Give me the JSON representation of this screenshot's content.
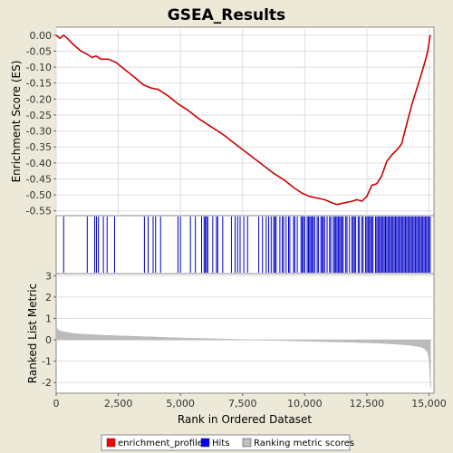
{
  "chart_data": {
    "type": "line",
    "title": "GSEA_Results",
    "xlabel": "Rank in Ordered Dataset",
    "xlim": [
      0,
      15200
    ],
    "xticks": [
      0,
      2500,
      5000,
      7500,
      10000,
      12500,
      15000
    ],
    "xtick_labels": [
      "0",
      "2,500",
      "5,000",
      "7,500",
      "10,000",
      "12,500",
      "15,000"
    ],
    "panels": {
      "enrichment": {
        "ylabel": "Enrichment Score (ES)",
        "ylim": [
          -0.565,
          0.025
        ],
        "yticks": [
          0.0,
          -0.05,
          -0.1,
          -0.15,
          -0.2,
          -0.25,
          -0.3,
          -0.35,
          -0.4,
          -0.45,
          -0.5,
          -0.55
        ],
        "ytick_labels": [
          "0.00",
          "-0.05",
          "-0.10",
          "-0.15",
          "-0.20",
          "-0.25",
          "-0.30",
          "-0.35",
          "-0.40",
          "-0.45",
          "-0.50",
          "-0.55"
        ],
        "series": {
          "name": "enrichment_profile",
          "color": "#cc0000",
          "x": [
            0,
            150,
            300,
            450,
            700,
            1000,
            1250,
            1450,
            1600,
            1800,
            2100,
            2400,
            2800,
            3200,
            3500,
            3800,
            4100,
            4500,
            4900,
            5300,
            5800,
            6200,
            6700,
            7200,
            7700,
            8200,
            8700,
            9200,
            9600,
            9900,
            10200,
            10500,
            10800,
            11100,
            11300,
            11600,
            11900,
            12100,
            12300,
            12500,
            12700,
            12900,
            13100,
            13300,
            13500,
            13700,
            13900,
            14100,
            14300,
            14500,
            14700,
            14850,
            14950,
            15050
          ],
          "y": [
            0.0,
            -0.01,
            0.0,
            -0.01,
            -0.03,
            -0.05,
            -0.06,
            -0.07,
            -0.065,
            -0.075,
            -0.075,
            -0.085,
            -0.11,
            -0.135,
            -0.155,
            -0.165,
            -0.17,
            -0.19,
            -0.215,
            -0.235,
            -0.265,
            -0.285,
            -0.31,
            -0.34,
            -0.37,
            -0.4,
            -0.43,
            -0.455,
            -0.48,
            -0.495,
            -0.505,
            -0.51,
            -0.515,
            -0.525,
            -0.53,
            -0.525,
            -0.52,
            -0.515,
            -0.52,
            -0.505,
            -0.47,
            -0.465,
            -0.44,
            -0.395,
            -0.375,
            -0.36,
            -0.34,
            -0.28,
            -0.22,
            -0.17,
            -0.12,
            -0.08,
            -0.05,
            0.0
          ]
        }
      },
      "hits": {
        "name": "Hits",
        "color": "#0000cc",
        "positions": [
          300,
          1250,
          1550,
          1620,
          1700,
          1900,
          2050,
          2350,
          3550,
          3700,
          3900,
          4000,
          4200,
          4900,
          5000,
          5400,
          5600,
          5850,
          5950,
          6000,
          6050,
          6100,
          6300,
          6450,
          6500,
          6700,
          7050,
          7200,
          7300,
          7400,
          7550,
          7700,
          8150,
          8300,
          8450,
          8550,
          8650,
          8750,
          8800,
          8850,
          9000,
          9100,
          9150,
          9250,
          9350,
          9400,
          9550,
          9600,
          9700,
          9850,
          9900,
          9950,
          10000,
          10100,
          10150,
          10200,
          10250,
          10300,
          10350,
          10400,
          10500,
          10550,
          10650,
          10700,
          10750,
          10800,
          10900,
          11000,
          11050,
          11150,
          11200,
          11250,
          11300,
          11350,
          11400,
          11450,
          11500,
          11550,
          11650,
          11700,
          11800,
          11900,
          11950,
          12000,
          12050,
          12150,
          12200,
          12300,
          12350,
          12450,
          12500,
          12550,
          12600,
          12650,
          12700,
          12750,
          12850,
          12900,
          12950,
          13000,
          13050,
          13100,
          13150,
          13200,
          13250,
          13300,
          13350,
          13400,
          13450,
          13500,
          13550,
          13600,
          13650,
          13700,
          13750,
          13800,
          13850,
          13900,
          13950,
          14000,
          14050,
          14100,
          14150,
          14200,
          14250,
          14300,
          14350,
          14400,
          14450,
          14500,
          14550,
          14600,
          14650,
          14700,
          14750,
          14800,
          14850,
          14900,
          14950,
          15000,
          15050
        ]
      },
      "ranking": {
        "name": "Ranking metric scores",
        "color": "#bbbbbb",
        "ylabel": "Ranked List Metric",
        "ylim": [
          -2.5,
          3.1
        ],
        "yticks": [
          3,
          2,
          1,
          0,
          -1,
          -2
        ],
        "ytick_labels": [
          "3",
          "2",
          "1",
          "0",
          "-1",
          "-2"
        ],
        "x": [
          0,
          30,
          100,
          200,
          400,
          700,
          1000,
          1500,
          2000,
          3000,
          4000,
          5000,
          6000,
          7000,
          7500,
          8000,
          9000,
          10000,
          11000,
          12000,
          13000,
          13500,
          14000,
          14300,
          14500,
          14700,
          14850,
          14950,
          15000,
          15030,
          15060
        ],
        "y": [
          0.65,
          0.55,
          0.45,
          0.4,
          0.35,
          0.3,
          0.27,
          0.24,
          0.21,
          0.17,
          0.13,
          0.09,
          0.06,
          0.03,
          0.01,
          -0.01,
          -0.03,
          -0.06,
          -0.09,
          -0.12,
          -0.16,
          -0.19,
          -0.23,
          -0.27,
          -0.3,
          -0.35,
          -0.45,
          -0.6,
          -0.9,
          -1.6,
          -2.3
        ]
      }
    },
    "legend": {
      "placement": "bottom",
      "entries": [
        {
          "label": "enrichment_profile",
          "color": "#ff0000"
        },
        {
          "label": "Hits",
          "color": "#0000ff"
        },
        {
          "label": "Ranking metric scores",
          "color": "#c0c0c0"
        }
      ]
    }
  }
}
